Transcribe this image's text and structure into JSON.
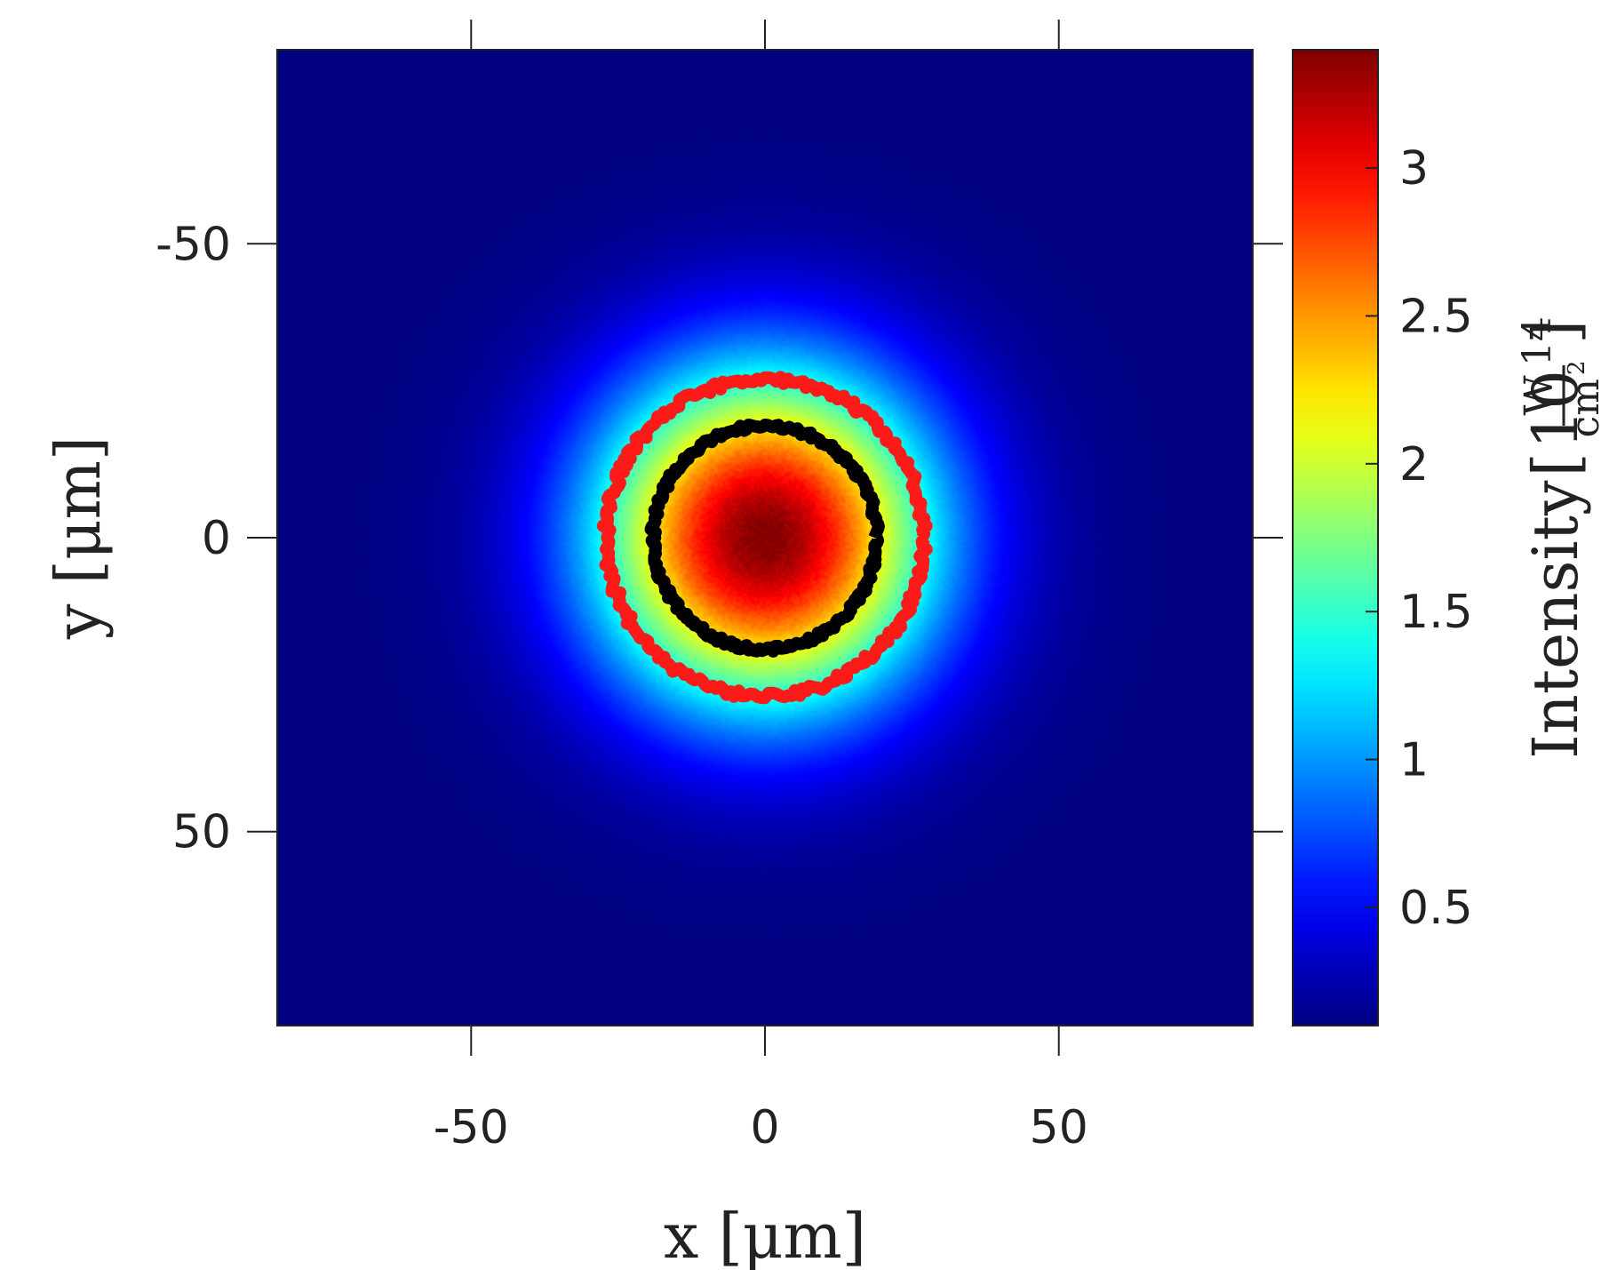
{
  "chart_data": {
    "type": "heatmap",
    "title": "",
    "xlabel": "x [μm]",
    "ylabel": "y [μm]",
    "xlim": [
      -83,
      83
    ],
    "ylim": [
      83,
      -83
    ],
    "y_axis_inverted": true,
    "x_ticks": [
      -50,
      0,
      50
    ],
    "y_ticks": [
      -50,
      0,
      50
    ],
    "x_tick_labels": [
      "-50",
      "0",
      "50"
    ],
    "y_tick_labels": [
      "-50",
      "0",
      "50"
    ],
    "grid": false,
    "colormap": "jet",
    "colorbar": {
      "label_text": "Intensity",
      "label_unit_base": "10",
      "label_unit_exponent": "14",
      "label_unit_numerator": "W",
      "label_unit_denominator": "cm",
      "label_unit_denominator_exponent": "2",
      "range": [
        0.1,
        3.4
      ],
      "ticks": [
        0.5,
        1,
        1.5,
        2,
        2.5,
        3
      ],
      "tick_labels": [
        "0.5",
        "1",
        "1.5",
        "2",
        "2.5",
        "3"
      ]
    },
    "field": {
      "shape": "gaussian",
      "center": [
        0,
        0
      ],
      "peak_intensity": 3.4,
      "background_intensity": 0.1,
      "radius_1_over_e2": 40
    },
    "contours": [
      {
        "color": "#000000",
        "radius": 19
      },
      {
        "color": "#ff1a1a",
        "radius": 27
      }
    ]
  }
}
